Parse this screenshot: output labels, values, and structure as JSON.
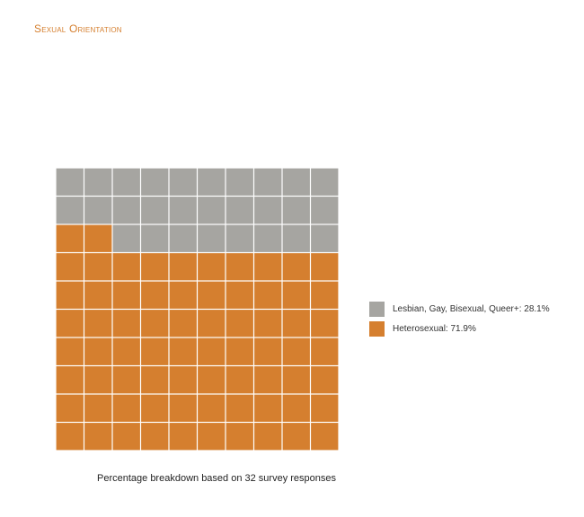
{
  "page": {
    "title": "Sexual Orientation"
  },
  "chart_data": {
    "type": "waffle",
    "grid": {
      "rows": 10,
      "cols": 10
    },
    "fill_order": "bottom-up",
    "series": [
      {
        "name": "Lesbian, Gay, Bisexual, Queer+",
        "label": "Lesbian, Gay, Bisexual, Queer+: 28.1%",
        "value": 28.1,
        "cells": 28,
        "color": "#a6a5a1"
      },
      {
        "name": "Heterosexual",
        "label": "Heterosexual: 71.9%",
        "value": 71.9,
        "cells": 72,
        "color": "#d57f2f"
      }
    ],
    "caption": "Percentage breakdown based on 32 survey responses",
    "legend_position": "right"
  }
}
